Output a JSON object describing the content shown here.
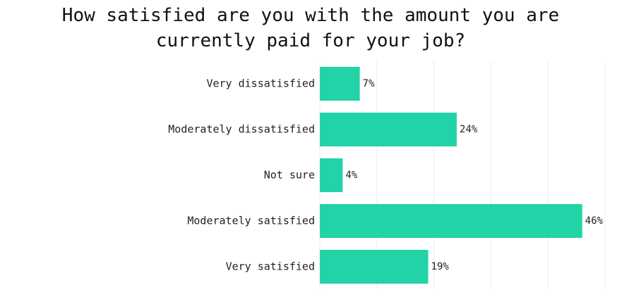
{
  "chart_data": {
    "type": "hbar",
    "title": "How satisfied are you with the amount you are currently paid for your job?",
    "categories": [
      "Very dissatisfied",
      "Moderately dissatisfied",
      "Not sure",
      "Moderately satisfied",
      "Very satisfied"
    ],
    "values": [
      7,
      24,
      4,
      46,
      19
    ],
    "value_labels": [
      "7%",
      "24%",
      "4%",
      "46%",
      "19%"
    ],
    "color": "#21d3a6",
    "xlim": [
      0,
      50
    ],
    "xticks": [
      0,
      10,
      20,
      30,
      40,
      50
    ],
    "grid": true
  }
}
